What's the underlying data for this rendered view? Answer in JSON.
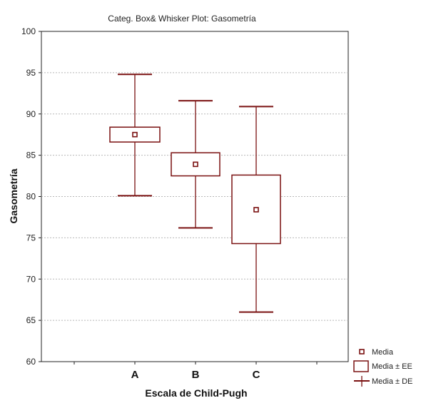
{
  "chart_data": {
    "type": "box",
    "title": "Categ. Box& Whisker Plot: Gasometría",
    "xlabel": "Escala de Child-Pugh",
    "ylabel": "Gasometría",
    "categories": [
      "A",
      "B",
      "C"
    ],
    "ylim": [
      60,
      100
    ],
    "yticks": [
      "100",
      "95",
      "90",
      "85",
      "80",
      "75",
      "70",
      "65",
      "60"
    ],
    "series": [
      {
        "category": "A",
        "mean": 87.5,
        "se_low": 86.6,
        "se_high": 88.4,
        "sd_low": 80.1,
        "sd_high": 94.8
      },
      {
        "category": "B",
        "mean": 83.9,
        "se_low": 82.5,
        "se_high": 85.3,
        "sd_low": 76.2,
        "sd_high": 91.6
      },
      {
        "category": "C",
        "mean": 78.4,
        "se_low": 74.3,
        "se_high": 82.6,
        "sd_low": 66.0,
        "sd_high": 90.9
      }
    ],
    "legend": {
      "position": "bottom-right",
      "items": [
        "Media",
        "Media ± EE",
        "Media ± DE"
      ]
    },
    "grid": true,
    "colors": {
      "box": "#7a1010",
      "grid": "#b8b8b8",
      "axis": "#222222"
    }
  }
}
